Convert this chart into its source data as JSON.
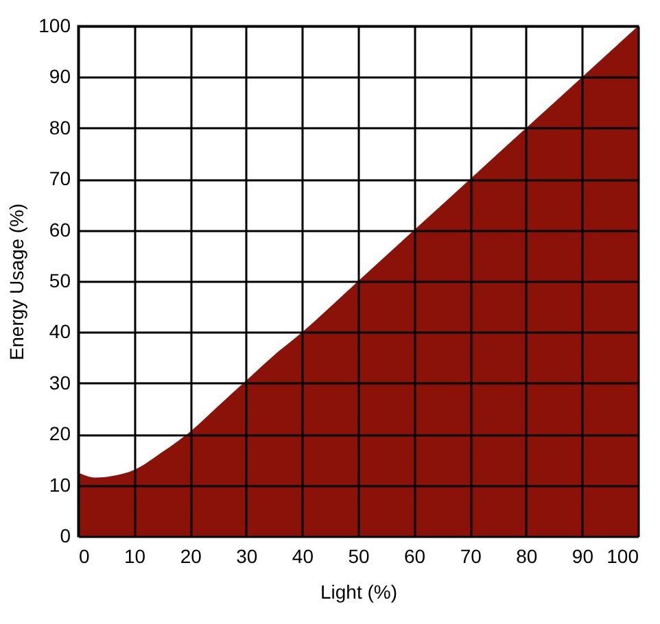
{
  "chart_data": {
    "type": "area",
    "xlabel": "Light (%)",
    "ylabel": "Energy Usage (%)",
    "x": [
      0,
      3,
      6,
      10,
      15,
      20,
      25,
      30,
      35,
      40,
      50,
      60,
      70,
      80,
      90,
      100
    ],
    "series": [
      {
        "color": "#8b1208",
        "values": [
          12.5,
          11.5,
          11.8,
          13,
          16.5,
          20.5,
          25.5,
          30.5,
          35.5,
          40,
          50,
          60,
          70,
          80,
          90,
          100
        ]
      }
    ],
    "xlim": [
      0,
      100
    ],
    "ylim": [
      0,
      100
    ],
    "xticks": [
      0,
      10,
      20,
      30,
      40,
      50,
      60,
      70,
      80,
      90,
      100
    ],
    "yticks": [
      0,
      10,
      20,
      30,
      40,
      50,
      60,
      70,
      80,
      90,
      100
    ],
    "grid": true
  }
}
